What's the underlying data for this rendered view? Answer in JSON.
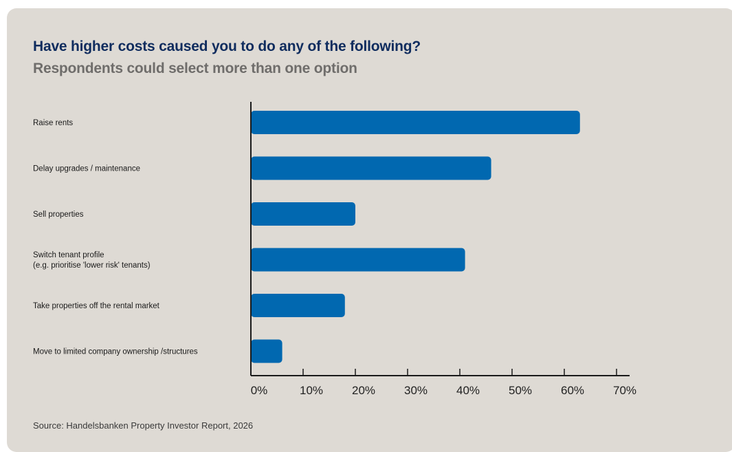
{
  "title": "Have higher costs caused you to do any of the following?",
  "subtitle": "Respondents could select more than one option",
  "source": "Source: Handelsbanken Property Investor Report, 2026",
  "colors": {
    "bar": "#0168b0",
    "axis": "#1a1a1a",
    "background": "#dedad4",
    "title": "#0f2c5e",
    "subtitle": "#6f6d6b"
  },
  "chart_data": {
    "type": "bar",
    "orientation": "horizontal",
    "categories": [
      [
        "Raise rents"
      ],
      [
        "Delay upgrades / maintenance"
      ],
      [
        "Sell properties"
      ],
      [
        "Switch tenant profile",
        "(e.g. prioritise 'lower risk' tenants)"
      ],
      [
        "Take properties off the rental market"
      ],
      [
        "Move to limited company ownership /structures"
      ]
    ],
    "values": [
      63,
      46,
      20,
      41,
      18,
      6
    ],
    "xlim": [
      0,
      70
    ],
    "ticks": [
      0,
      10,
      20,
      30,
      40,
      50,
      60,
      70
    ],
    "tick_labels": [
      "0%",
      "10%",
      "20%",
      "30%",
      "40%",
      "50%",
      "60%",
      "70%"
    ],
    "xlabel": "",
    "ylabel": "",
    "grid": false,
    "legend": "none"
  }
}
